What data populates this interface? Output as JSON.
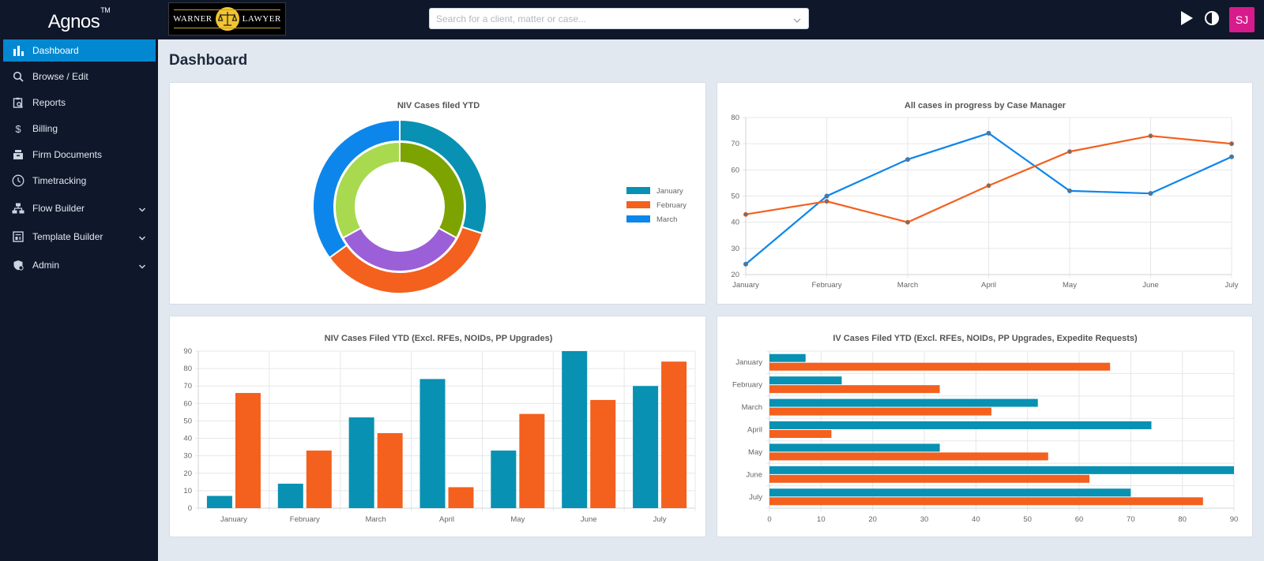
{
  "app": {
    "name": "Agnos",
    "trademark": "TM"
  },
  "firm_logo": {
    "left": "WARNER",
    "right": "LAWYER"
  },
  "search": {
    "placeholder": "Search for a client, matter or case..."
  },
  "user": {
    "initials": "SJ"
  },
  "sidebar": {
    "items": [
      {
        "label": "Dashboard",
        "icon": "bar-chart-icon",
        "active": true
      },
      {
        "label": "Browse / Edit",
        "icon": "search-icon"
      },
      {
        "label": "Reports",
        "icon": "report-icon"
      },
      {
        "label": "Billing",
        "icon": "dollar-icon"
      },
      {
        "label": "Firm Documents",
        "icon": "documents-icon"
      },
      {
        "label": "Timetracking",
        "icon": "clock-icon"
      },
      {
        "label": "Flow Builder",
        "icon": "flow-icon",
        "expandable": true
      },
      {
        "label": "Template Builder",
        "icon": "template-icon",
        "expandable": true
      },
      {
        "label": "Admin",
        "icon": "admin-shield-icon",
        "expandable": true
      }
    ]
  },
  "page": {
    "title": "Dashboard"
  },
  "colors": {
    "blue": "#0891b2",
    "orange": "#f4601e",
    "brightBlue": "#0d86ec",
    "green": "#7ca300",
    "lightGreen": "#a8d94f",
    "purple": "#9b5fd8"
  },
  "chart_data": [
    {
      "type": "pie",
      "title": "NIV Cases filed YTD",
      "legend": [
        "January",
        "February",
        "March"
      ],
      "legend_placement": "right",
      "rings": [
        {
          "name": "outer",
          "values": [
            30,
            35,
            35
          ],
          "colors": [
            "#0891b2",
            "#f4601e",
            "#0d86ec"
          ]
        },
        {
          "name": "inner",
          "values": [
            33,
            34,
            33
          ],
          "colors": [
            "#7ca300",
            "#9b5fd8",
            "#a8d94f"
          ]
        }
      ]
    },
    {
      "type": "line",
      "title": "All cases in progress by Case Manager",
      "categories": [
        "January",
        "February",
        "March",
        "April",
        "May",
        "June",
        "July"
      ],
      "ylim": [
        20,
        80
      ],
      "yticks": [
        20,
        30,
        40,
        50,
        60,
        70,
        80
      ],
      "grid": true,
      "series": [
        {
          "values": [
            24,
            50,
            64,
            74,
            52,
            51,
            65
          ],
          "color": "#0d86ec"
        },
        {
          "values": [
            43,
            48,
            40,
            54,
            67,
            73,
            70
          ],
          "color": "#f4601e"
        }
      ]
    },
    {
      "type": "bar",
      "title": "NIV Cases Filed YTD (Excl. RFEs, NOIDs, PP Upgrades)",
      "categories": [
        "January",
        "February",
        "March",
        "April",
        "May",
        "June",
        "July"
      ],
      "ylim": [
        0,
        90
      ],
      "yticks": [
        0,
        10,
        20,
        30,
        40,
        50,
        60,
        70,
        80,
        90
      ],
      "grid": true,
      "series": [
        {
          "values": [
            7,
            14,
            52,
            74,
            33,
            90,
            70
          ],
          "color": "#0891b2"
        },
        {
          "values": [
            66,
            33,
            43,
            12,
            54,
            62,
            84
          ],
          "color": "#f4601e"
        }
      ]
    },
    {
      "type": "bar",
      "orientation": "horizontal",
      "title": "IV Cases Filed YTD (Excl. RFEs, NOIDs, PP Upgrades, Expedite Requests)",
      "categories": [
        "January",
        "February",
        "March",
        "April",
        "May",
        "June",
        "July"
      ],
      "xlim": [
        0,
        90
      ],
      "xticks": [
        0,
        10,
        20,
        30,
        40,
        50,
        60,
        70,
        80,
        90
      ],
      "grid": true,
      "series": [
        {
          "values": [
            7,
            14,
            52,
            74,
            33,
            90,
            70
          ],
          "color": "#0891b2"
        },
        {
          "values": [
            66,
            33,
            43,
            12,
            54,
            62,
            84
          ],
          "color": "#f4601e"
        }
      ]
    }
  ]
}
